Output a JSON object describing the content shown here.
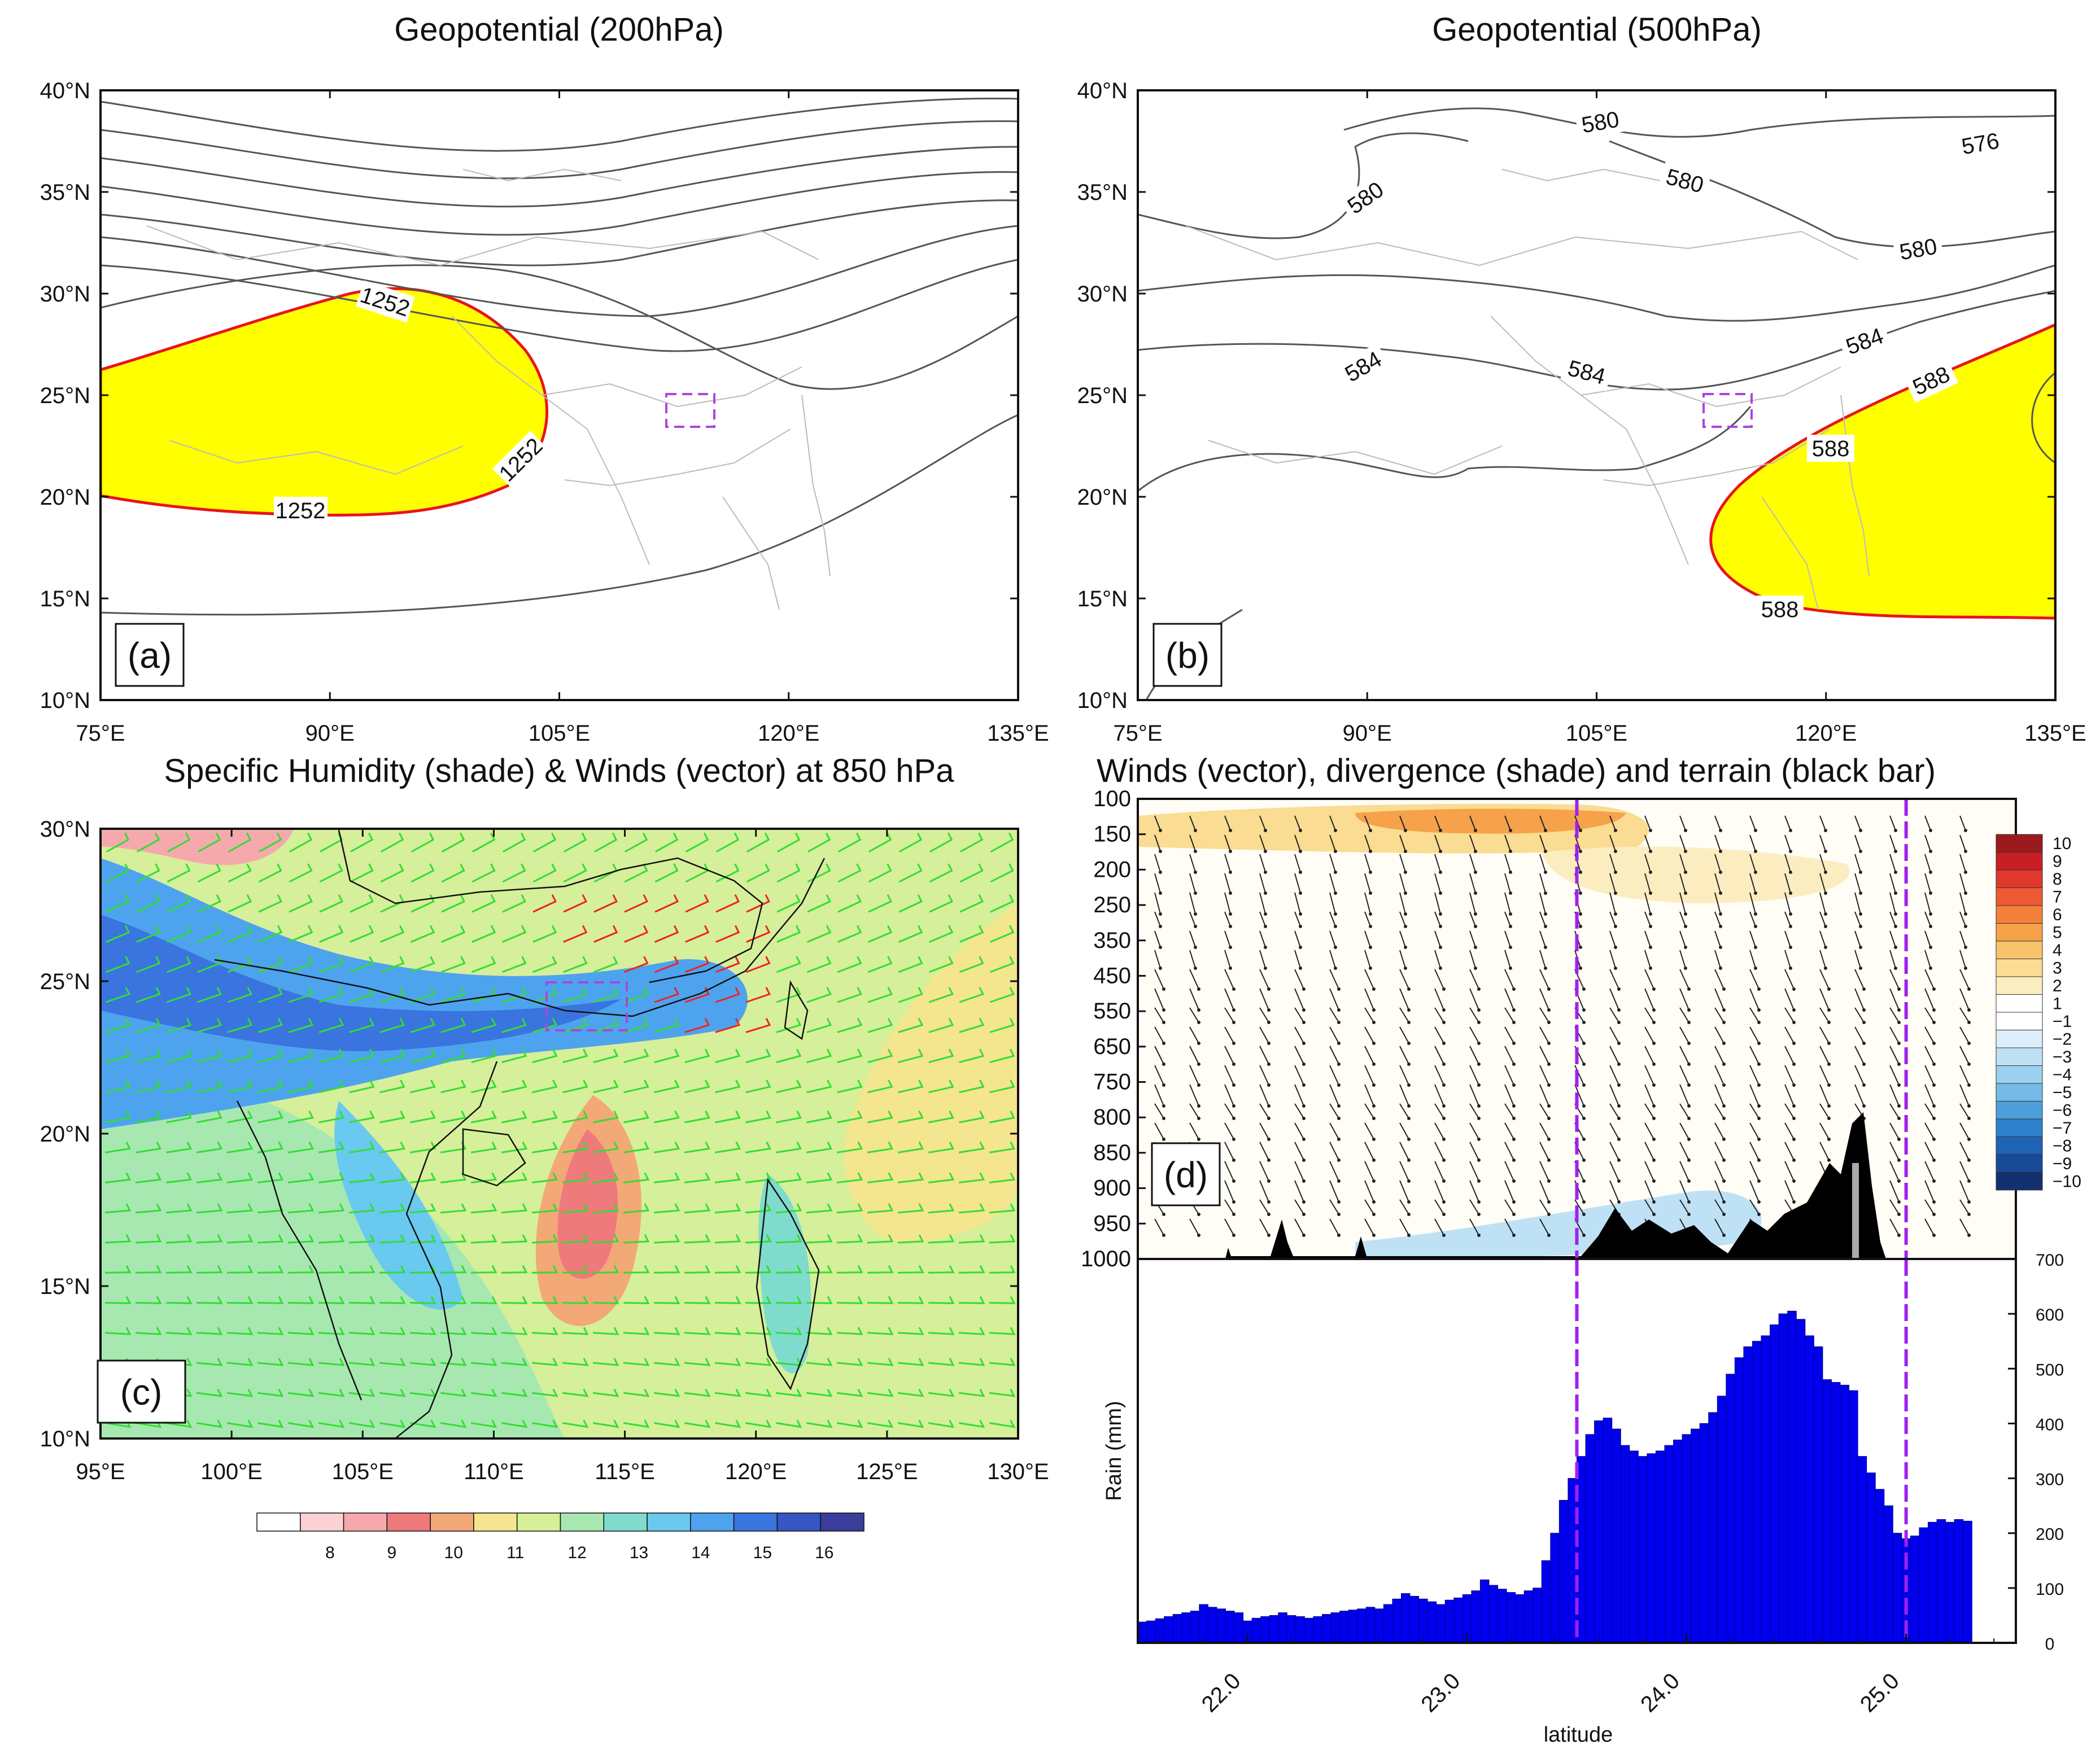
{
  "chart_data": [
    {
      "id": "a",
      "type": "contour-map",
      "title": "Geopotential (200hPa)",
      "panel_label": "(a)",
      "x": [
        75,
        90,
        105,
        120,
        135
      ],
      "x_ticks": [
        "75°E",
        "90°E",
        "105°E",
        "120°E",
        "135°E"
      ],
      "y": [
        10,
        15,
        20,
        25,
        30,
        35,
        40
      ],
      "y_ticks": [
        "10°N",
        "15°N",
        "20°N",
        "25°N",
        "30°N",
        "35°N",
        "40°N"
      ],
      "xlim": [
        75,
        135
      ],
      "ylim": [
        10,
        40
      ],
      "contour_labels": [
        "1252",
        "1252",
        "1252"
      ],
      "shaded_threshold": 1252,
      "shade_color": "#ffff00",
      "threshold_line_color": "#e8141c",
      "box_color": "#a946e0",
      "box": {
        "lon": [
          112,
          115
        ],
        "lat": [
          23.5,
          25
        ]
      }
    },
    {
      "id": "b",
      "type": "contour-map",
      "title": "Geopotential (500hPa)",
      "panel_label": "(b)",
      "x": [
        75,
        90,
        105,
        120,
        135
      ],
      "x_ticks": [
        "75°E",
        "90°E",
        "105°E",
        "120°E",
        "135°E"
      ],
      "y": [
        10,
        15,
        20,
        25,
        30,
        35,
        40
      ],
      "y_ticks": [
        "10°N",
        "15°N",
        "20°N",
        "25°N",
        "30°N",
        "35°N",
        "40°N"
      ],
      "xlim": [
        75,
        135
      ],
      "ylim": [
        10,
        40
      ],
      "contour_labels": [
        "580",
        "580",
        "580",
        "576",
        "580",
        "584",
        "584",
        "584",
        "588",
        "588",
        "588"
      ],
      "shaded_threshold": 588,
      "shade_color": "#ffff00",
      "threshold_line_color": "#e8141c",
      "box_color": "#a946e0",
      "box": {
        "lon": [
          112,
          115
        ],
        "lat": [
          23.5,
          25
        ]
      }
    },
    {
      "id": "c",
      "type": "heatmap",
      "title": "Specific Humidity (shade) & Winds (vector) at 850 hPa",
      "panel_label": "(c)",
      "x": [
        95,
        100,
        105,
        110,
        115,
        120,
        125,
        130
      ],
      "x_ticks": [
        "95°E",
        "100°E",
        "105°E",
        "110°E",
        "115°E",
        "120°E",
        "125°E",
        "130°E"
      ],
      "y": [
        10,
        15,
        20,
        25,
        30
      ],
      "y_ticks": [
        "10°N",
        "15°N",
        "20°N",
        "25°N",
        "30°N"
      ],
      "xlim": [
        95,
        130
      ],
      "ylim": [
        10,
        30
      ],
      "colorbar_labels": [
        "8",
        "9",
        "10",
        "11",
        "12",
        "13",
        "14",
        "15",
        "16"
      ],
      "colorbar_colors": [
        "#ffffff",
        "#fbd2d4",
        "#f6a9ad",
        "#ef7a7c",
        "#f2a877",
        "#f4e58f",
        "#d6ef9a",
        "#a7e8b0",
        "#7fdccc",
        "#69c9ee",
        "#4ea3ee",
        "#3a74df",
        "#3556c3",
        "#3a3d9a"
      ],
      "wind_colors": {
        "normal": "#33dd33",
        "strong": "#ee2222"
      },
      "box_color": "#a946e0",
      "box": {
        "lon": [
          112,
          115
        ],
        "lat": [
          23.5,
          25
        ]
      }
    },
    {
      "id": "d",
      "type": "cross-section",
      "title": "Winds (vector), divergence (shade) and terrain (black bar)",
      "panel_label": "(d)",
      "y_ticks": [
        "100",
        "150",
        "200",
        "250",
        "350",
        "450",
        "550",
        "650",
        "750",
        "800",
        "850",
        "900",
        "950",
        "1000"
      ],
      "xlim": [
        21.5,
        25.5
      ],
      "colorbar_labels": [
        "10",
        "9",
        "8",
        "7",
        "6",
        "5",
        "4",
        "3",
        "2",
        "1",
        "−1",
        "−2",
        "−3",
        "−4",
        "−5",
        "−6",
        "−7",
        "−8",
        "−9",
        "−10"
      ],
      "colorbar_colors": [
        "#9a1a1e",
        "#c81e24",
        "#e0382c",
        "#ee5a34",
        "#f4803a",
        "#f6a24a",
        "#f8c36c",
        "#fadc92",
        "#fcedc0",
        "#ffffff",
        "#ffffff",
        "#dceef9",
        "#bfe1f5",
        "#9cd0ef",
        "#76bbe7",
        "#4d9fdc",
        "#2f81cc",
        "#1f63b4",
        "#184a98",
        "#13306e"
      ],
      "vlines": [
        23.5,
        25.0
      ],
      "vline_color": "#a020f0"
    },
    {
      "id": "e",
      "type": "bar",
      "xlabel": "latitude",
      "ylabel": "Rain (mm)",
      "x_ticks": [
        "22.0",
        "23.0",
        "24.0",
        "25.0"
      ],
      "x_tick_values": [
        22.0,
        23.0,
        24.0,
        25.0
      ],
      "y_ticks": [
        "0",
        "100",
        "200",
        "300",
        "400",
        "500",
        "600",
        "700"
      ],
      "xlim": [
        21.5,
        25.5
      ],
      "ylim": [
        0,
        700
      ],
      "bar_color": "#0000ee",
      "vlines": [
        23.5,
        25.0
      ],
      "vline_color": "#a020f0",
      "x_start": 21.5,
      "x_step": 0.04,
      "values": [
        38,
        40,
        44,
        48,
        52,
        55,
        58,
        70,
        65,
        62,
        58,
        55,
        40,
        45,
        48,
        50,
        55,
        50,
        48,
        45,
        48,
        52,
        55,
        58,
        60,
        62,
        65,
        62,
        70,
        80,
        90,
        85,
        80,
        75,
        70,
        78,
        82,
        88,
        95,
        115,
        105,
        98,
        92,
        88,
        95,
        100,
        150,
        200,
        260,
        300,
        340,
        380,
        405,
        410,
        390,
        360,
        350,
        340,
        345,
        350,
        360,
        370,
        380,
        390,
        400,
        420,
        450,
        490,
        520,
        540,
        550,
        560,
        580,
        600,
        605,
        590,
        560,
        540,
        480,
        475,
        470,
        460,
        340,
        310,
        280,
        250,
        200,
        190,
        195,
        210,
        220,
        225,
        220,
        225,
        222
      ]
    }
  ]
}
